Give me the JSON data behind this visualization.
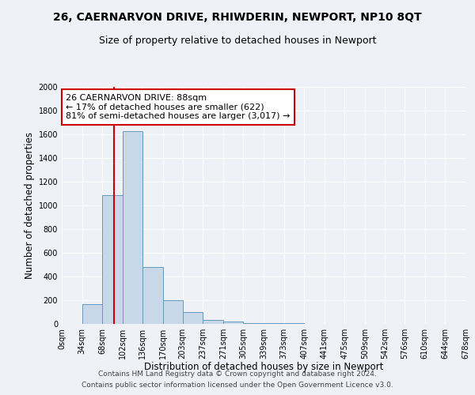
{
  "title": "26, CAERNARVON DRIVE, RHIWDERIN, NEWPORT, NP10 8QT",
  "subtitle": "Size of property relative to detached houses in Newport",
  "xlabel": "Distribution of detached houses by size in Newport",
  "ylabel": "Number of detached properties",
  "bin_edges": [
    0,
    34,
    68,
    102,
    136,
    170,
    203,
    237,
    271,
    305,
    339,
    373,
    407,
    441,
    475,
    509,
    542,
    576,
    610,
    644,
    678
  ],
  "bar_heights": [
    0,
    170,
    1090,
    1630,
    480,
    200,
    100,
    35,
    20,
    10,
    8,
    5,
    3,
    2,
    2,
    2,
    1,
    1,
    1,
    1
  ],
  "bar_color": "#c8d8e8",
  "bar_edge_color": "#6699bb",
  "red_line_x": 88,
  "red_line_color": "#cc0000",
  "annotation_line1": "26 CAERNARVON DRIVE: 88sqm",
  "annotation_line2": "← 17% of detached houses are smaller (622)",
  "annotation_line3": "81% of semi-detached houses are larger (3,017) →",
  "annotation_box_color": "#ffffff",
  "annotation_box_edge_color": "#cc0000",
  "ylim": [
    0,
    2000
  ],
  "yticks": [
    0,
    200,
    400,
    600,
    800,
    1000,
    1200,
    1400,
    1600,
    1800,
    2000
  ],
  "bg_color": "#eef2f7",
  "grid_color": "#ffffff",
  "footer_line1": "Contains HM Land Registry data © Crown copyright and database right 2024.",
  "footer_line2": "Contains public sector information licensed under the Open Government Licence v3.0.",
  "title_fontsize": 10,
  "subtitle_fontsize": 9,
  "xlabel_fontsize": 8.5,
  "ylabel_fontsize": 8.5,
  "tick_fontsize": 7,
  "footer_fontsize": 6.5,
  "annotation_fontsize": 8
}
